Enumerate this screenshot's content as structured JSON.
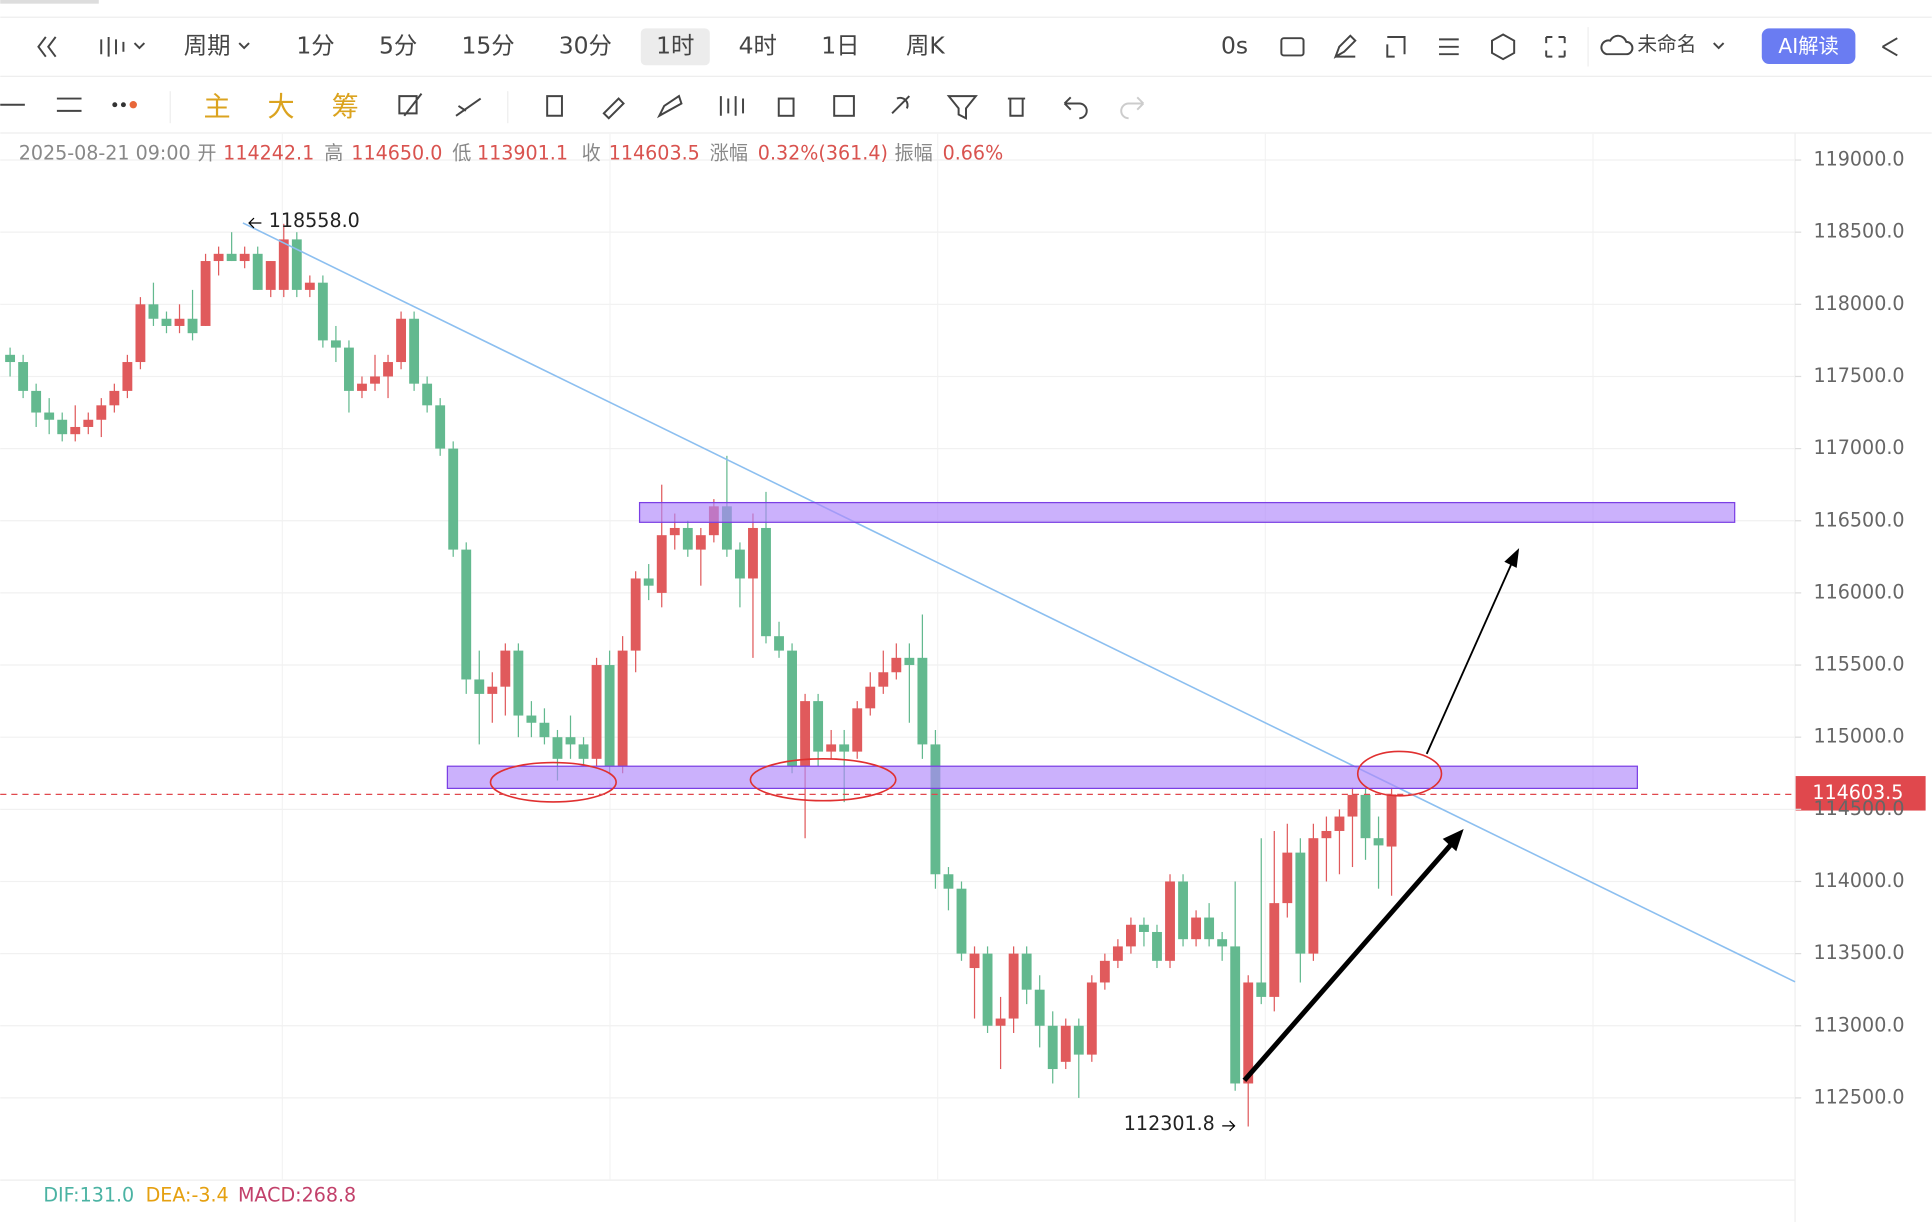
{
  "toolbar": {
    "period_label": "周期",
    "periods": [
      "1分",
      "5分",
      "15分",
      "30分",
      "1时",
      "4时",
      "1日",
      "周K"
    ],
    "selected_period_index": 4,
    "countdown": "0s",
    "layout_name": "未命名",
    "ai_button": "AI解读",
    "indicators": [
      "主",
      "大",
      "筹"
    ]
  },
  "info": {
    "date": "2025-08-21 09:00",
    "items": [
      {
        "label": "开",
        "value": "114242.1"
      },
      {
        "label": "高",
        "value": "114650.0"
      },
      {
        "label": "低",
        "value": "113901.1"
      },
      {
        "label": "收",
        "value": "114603.5"
      },
      {
        "label": "涨幅",
        "value": "0.32%(361.4)"
      },
      {
        "label": "振幅",
        "value": "0.66%"
      }
    ]
  },
  "chart_data": {
    "type": "candlestick",
    "up_color": "#e05a5c",
    "down_color": "#63b98f",
    "ohlc": [
      [
        117650,
        117700,
        117500,
        117600
      ],
      [
        117600,
        117650,
        117350,
        117400
      ],
      [
        117400,
        117450,
        117150,
        117250
      ],
      [
        117250,
        117350,
        117100,
        117200
      ],
      [
        117200,
        117250,
        117050,
        117100
      ],
      [
        117100,
        117300,
        117050,
        117150
      ],
      [
        117150,
        117250,
        117100,
        117200
      ],
      [
        117200,
        117350,
        117080,
        117300
      ],
      [
        117300,
        117450,
        117250,
        117400
      ],
      [
        117400,
        117650,
        117350,
        117600
      ],
      [
        117600,
        118050,
        117550,
        118000
      ],
      [
        118000,
        118150,
        117850,
        117900
      ],
      [
        117900,
        117950,
        117800,
        117850
      ],
      [
        117850,
        118000,
        117800,
        117900
      ],
      [
        117900,
        118100,
        117750,
        117800
      ],
      [
        117850,
        118350,
        117850,
        118300
      ],
      [
        118300,
        118400,
        118200,
        118350
      ],
      [
        118350,
        118500,
        118300,
        118300
      ],
      [
        118300,
        118400,
        118250,
        118350
      ],
      [
        118350,
        118400,
        118100,
        118100
      ],
      [
        118100,
        118300,
        118050,
        118300
      ],
      [
        118100,
        118558,
        118050,
        118450
      ],
      [
        118450,
        118500,
        118050,
        118100
      ],
      [
        118100,
        118200,
        118050,
        118150
      ],
      [
        118150,
        118200,
        117700,
        117750
      ],
      [
        117750,
        117850,
        117600,
        117700
      ],
      [
        117700,
        117750,
        117250,
        117400
      ],
      [
        117400,
        117500,
        117350,
        117450
      ],
      [
        117450,
        117650,
        117400,
        117500
      ],
      [
        117500,
        117650,
        117350,
        117600
      ],
      [
        117600,
        117950,
        117550,
        117900
      ],
      [
        117900,
        117950,
        117400,
        117450
      ],
      [
        117450,
        117500,
        117250,
        117300
      ],
      [
        117300,
        117350,
        116950,
        117000
      ],
      [
        117000,
        117050,
        116250,
        116300
      ],
      [
        116300,
        116350,
        115300,
        115400
      ],
      [
        115400,
        115600,
        114950,
        115300
      ],
      [
        115300,
        115450,
        115100,
        115350
      ],
      [
        115350,
        115650,
        115150,
        115600
      ],
      [
        115600,
        115650,
        115000,
        115150
      ],
      [
        115150,
        115250,
        115000,
        115100
      ],
      [
        115100,
        115200,
        114950,
        115000
      ],
      [
        115000,
        115050,
        114700,
        114850
      ],
      [
        115000,
        115150,
        114850,
        114950
      ],
      [
        114950,
        115000,
        114800,
        114850
      ],
      [
        114850,
        115550,
        114800,
        115500
      ],
      [
        115500,
        115600,
        114750,
        114800
      ],
      [
        114800,
        115700,
        114750,
        115600
      ],
      [
        115600,
        116150,
        115450,
        116100
      ],
      [
        116100,
        116200,
        115950,
        116050
      ],
      [
        116000,
        116750,
        115900,
        116400
      ],
      [
        116400,
        116550,
        116300,
        116450
      ],
      [
        116450,
        116500,
        116250,
        116300
      ],
      [
        116300,
        116450,
        116050,
        116400
      ],
      [
        116400,
        116650,
        116350,
        116600
      ],
      [
        116600,
        116950,
        116250,
        116300
      ],
      [
        116300,
        116350,
        115900,
        116100
      ],
      [
        116100,
        116550,
        115550,
        116450
      ],
      [
        116450,
        116700,
        115650,
        115700
      ],
      [
        115700,
        115800,
        115550,
        115600
      ],
      [
        115600,
        115650,
        114750,
        114800
      ],
      [
        114800,
        115300,
        114300,
        115250
      ],
      [
        115250,
        115300,
        114800,
        114900
      ],
      [
        114900,
        115050,
        114850,
        114950
      ],
      [
        114950,
        115050,
        114550,
        114900
      ],
      [
        114900,
        115250,
        114850,
        115200
      ],
      [
        115200,
        115450,
        115150,
        115350
      ],
      [
        115350,
        115600,
        115300,
        115450
      ],
      [
        115450,
        115650,
        115400,
        115550
      ],
      [
        115550,
        115650,
        115100,
        115500
      ],
      [
        115550,
        115850,
        114850,
        114950
      ],
      [
        114950,
        115050,
        113950,
        114050
      ],
      [
        114050,
        114100,
        113800,
        113950
      ],
      [
        113950,
        114000,
        113450,
        113500
      ],
      [
        113400,
        113550,
        113050,
        113500
      ],
      [
        113500,
        113550,
        112950,
        113000
      ],
      [
        113000,
        113200,
        112700,
        113050
      ],
      [
        113050,
        113550,
        112950,
        113500
      ],
      [
        113500,
        113550,
        113150,
        113250
      ],
      [
        113250,
        113350,
        112850,
        113000
      ],
      [
        113000,
        113100,
        112600,
        112700
      ],
      [
        112750,
        113050,
        112700,
        113000
      ],
      [
        113000,
        113050,
        112500,
        112800
      ],
      [
        112800,
        113350,
        112750,
        113300
      ],
      [
        113300,
        113500,
        113250,
        113450
      ],
      [
        113450,
        113600,
        113400,
        113550
      ],
      [
        113550,
        113750,
        113500,
        113700
      ],
      [
        113700,
        113750,
        113550,
        113650
      ],
      [
        113650,
        113700,
        113400,
        113450
      ],
      [
        113450,
        114050,
        113400,
        114000
      ],
      [
        114000,
        114050,
        113550,
        113600
      ],
      [
        113600,
        113800,
        113550,
        113750
      ],
      [
        113750,
        113850,
        113550,
        113600
      ],
      [
        113600,
        113650,
        113450,
        113550
      ],
      [
        113550,
        114000,
        112550,
        112600
      ],
      [
        112600,
        113350,
        112301.8,
        113300
      ],
      [
        113300,
        114300,
        113150,
        113200
      ],
      [
        113200,
        114350,
        113100,
        113850
      ],
      [
        113850,
        114400,
        113750,
        114200
      ],
      [
        114200,
        114300,
        113300,
        113500
      ],
      [
        113500,
        114400,
        113450,
        114300
      ],
      [
        114300,
        114450,
        114000,
        114350
      ],
      [
        114350,
        114500,
        114050,
        114450
      ],
      [
        114450,
        114650,
        114100,
        114600
      ],
      [
        114600,
        114650,
        114150,
        114300
      ],
      [
        114300,
        114450,
        113950,
        114250
      ],
      [
        114242.1,
        114650,
        113901.1,
        114603.5
      ]
    ],
    "ylim": [
      111990,
      119170
    ],
    "yticks": [
      {
        "value": 112500,
        "label": "112500.0"
      },
      {
        "value": 113000,
        "label": "113000.0"
      },
      {
        "value": 113500,
        "label": "113500.0"
      },
      {
        "value": 114000,
        "label": "114000.0"
      },
      {
        "value": 114500,
        "label": "114500.0"
      },
      {
        "value": 115000,
        "label": "115000.0"
      },
      {
        "value": 115500,
        "label": "115500.0"
      },
      {
        "value": 116000,
        "label": "116000.0"
      },
      {
        "value": 116500,
        "label": "116500.0"
      },
      {
        "value": 117000,
        "label": "117000.0"
      },
      {
        "value": 117500,
        "label": "117500.0"
      },
      {
        "value": 118000,
        "label": "118000.0"
      },
      {
        "value": 118500,
        "label": "118500.0"
      },
      {
        "value": 119000,
        "label": "119000.0"
      }
    ],
    "grid": true,
    "current_price": 114603.5,
    "annotations": [
      "118558.0",
      "112301.8"
    ]
  },
  "macd": {
    "items": [
      "DIF:131.0",
      "DEA:-3.4",
      "MACD:268.8"
    ]
  }
}
